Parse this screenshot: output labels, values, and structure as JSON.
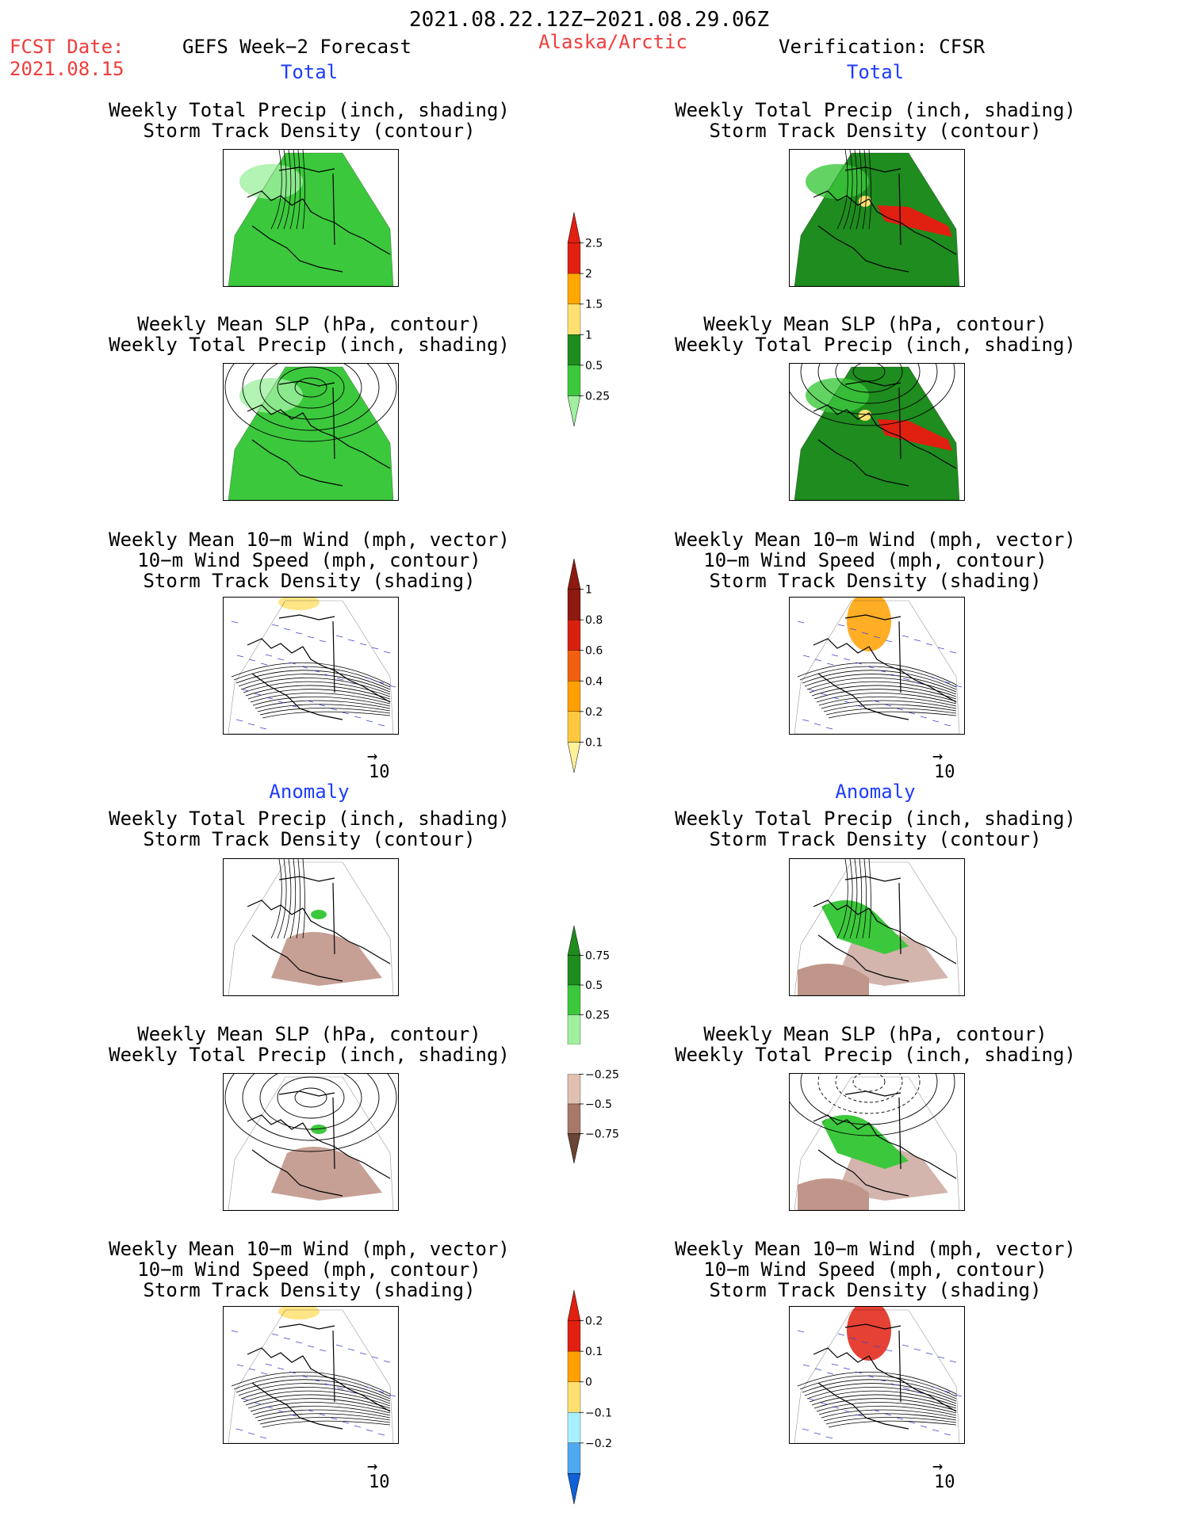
{
  "header": {
    "period": "2021.08.22.12Z−2021.08.29.06Z",
    "fcst_label": "FCST Date:",
    "fcst_date": "2021.08.15",
    "forecast_label": "GEFS Week−2 Forecast",
    "region": "Alaska/Arctic",
    "verification": "Verification: CFSR"
  },
  "sections": {
    "total": "Total",
    "anomaly": "Anomaly"
  },
  "titles": {
    "precip_storm": [
      "Weekly Total Precip (inch, shading)",
      "Storm Track Density (contour)"
    ],
    "slp_precip": [
      "Weekly Mean SLP (hPa, contour)",
      "Weekly Total Precip (inch, shading)"
    ],
    "wind": [
      "Weekly Mean 10−m Wind (mph, vector)",
      "10−m Wind Speed (mph, contour)",
      "Storm Track Density (shading)"
    ]
  },
  "vector_ref": "10",
  "colorbars": {
    "precip_total": {
      "ticks": [
        "2.5",
        "2",
        "1.5",
        "1",
        "0.5",
        "0.25"
      ],
      "colors": [
        "#e02010",
        "#ffa800",
        "#ffe070",
        "#1e8c1e",
        "#3cc83c",
        "#a0f0a0"
      ]
    },
    "storm_total": {
      "ticks": [
        "1",
        "0.8",
        "0.6",
        "0.4",
        "0.2",
        "0.1"
      ],
      "colors": [
        "#8c1a10",
        "#d82010",
        "#f06010",
        "#ffa000",
        "#ffc840",
        "#fff09a"
      ]
    },
    "precip_anom": {
      "ticks": [
        "0.75",
        "0.5",
        "0.25",
        "−0.25",
        "−0.5",
        "−0.75"
      ],
      "colors": [
        "#1e8c1e",
        "#3cc83c",
        "#a0f0a0",
        "#ffffff",
        "#e0c0b0",
        "#a87868",
        "#6a4434"
      ]
    },
    "storm_anom": {
      "ticks": [
        "0.2",
        "0.1",
        "0",
        "−0.1",
        "−0.2"
      ],
      "colors": [
        "#e02010",
        "#ffa000",
        "#ffe070",
        "#a8f0ff",
        "#50a8f0",
        "#1060d8"
      ]
    }
  },
  "panel_styles": {
    "fc_precip": {
      "fill": "#3cc83c",
      "hi": "#a0f0a0"
    },
    "ob_precip": {
      "fill": "#1e8c1e",
      "hi": "#3cc83c",
      "hot": "#e02010"
    },
    "anom_dry": "#c0968a",
    "anom_wet": "#3cc83c"
  }
}
